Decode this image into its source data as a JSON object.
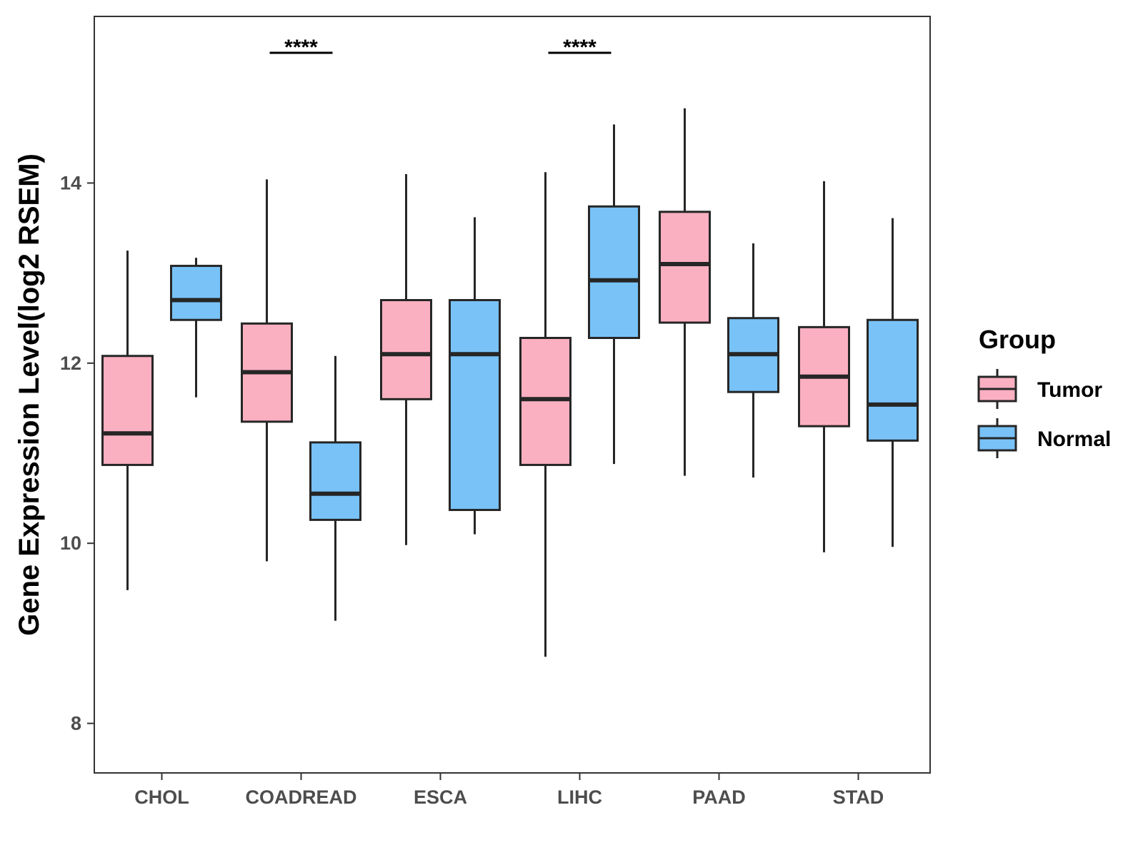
{
  "chart_data": {
    "type": "boxplot",
    "title": "",
    "xlabel": "",
    "ylabel": "Gene Expression Level(log2 RSEM)",
    "ylim": [
      7.45,
      15.85
    ],
    "yticks": [
      8,
      10,
      12,
      14
    ],
    "grid": false,
    "categories": [
      "CHOL",
      "COADREAD",
      "ESCA",
      "LIHC",
      "PAAD",
      "STAD"
    ],
    "legend": {
      "title": "Group",
      "position": "right"
    },
    "series": [
      {
        "name": "Tumor",
        "color": "#FBB0C1",
        "boxes": [
          {
            "category": "CHOL",
            "lower_whisker": 9.48,
            "q1": 10.87,
            "median": 11.22,
            "q3": 12.08,
            "upper_whisker": 13.25
          },
          {
            "category": "COADREAD",
            "lower_whisker": 9.8,
            "q1": 11.35,
            "median": 11.9,
            "q3": 12.44,
            "upper_whisker": 14.04
          },
          {
            "category": "ESCA",
            "lower_whisker": 9.98,
            "q1": 11.6,
            "median": 12.1,
            "q3": 12.7,
            "upper_whisker": 14.1
          },
          {
            "category": "LIHC",
            "lower_whisker": 8.74,
            "q1": 10.87,
            "median": 11.6,
            "q3": 12.28,
            "upper_whisker": 14.12
          },
          {
            "category": "PAAD",
            "lower_whisker": 10.75,
            "q1": 12.45,
            "median": 13.1,
            "q3": 13.68,
            "upper_whisker": 14.83
          },
          {
            "category": "STAD",
            "lower_whisker": 9.9,
            "q1": 11.3,
            "median": 11.85,
            "q3": 12.4,
            "upper_whisker": 14.02
          }
        ]
      },
      {
        "name": "Normal",
        "color": "#78C2F8",
        "boxes": [
          {
            "category": "CHOL",
            "lower_whisker": 11.62,
            "q1": 12.48,
            "median": 12.7,
            "q3": 13.08,
            "upper_whisker": 13.17
          },
          {
            "category": "COADREAD",
            "lower_whisker": 9.14,
            "q1": 10.26,
            "median": 10.55,
            "q3": 11.12,
            "upper_whisker": 12.08
          },
          {
            "category": "ESCA",
            "lower_whisker": 10.1,
            "q1": 10.37,
            "median": 12.1,
            "q3": 12.7,
            "upper_whisker": 13.62
          },
          {
            "category": "LIHC",
            "lower_whisker": 10.88,
            "q1": 12.28,
            "median": 12.92,
            "q3": 13.74,
            "upper_whisker": 14.65
          },
          {
            "category": "PAAD",
            "lower_whisker": 10.73,
            "q1": 11.68,
            "median": 12.1,
            "q3": 12.5,
            "upper_whisker": 13.33
          },
          {
            "category": "STAD",
            "lower_whisker": 9.96,
            "q1": 11.14,
            "median": 11.54,
            "q3": 12.48,
            "upper_whisker": 13.61
          }
        ]
      }
    ],
    "annotations": [
      {
        "category": "COADREAD",
        "label": "****"
      },
      {
        "category": "LIHC",
        "label": "****"
      }
    ]
  }
}
